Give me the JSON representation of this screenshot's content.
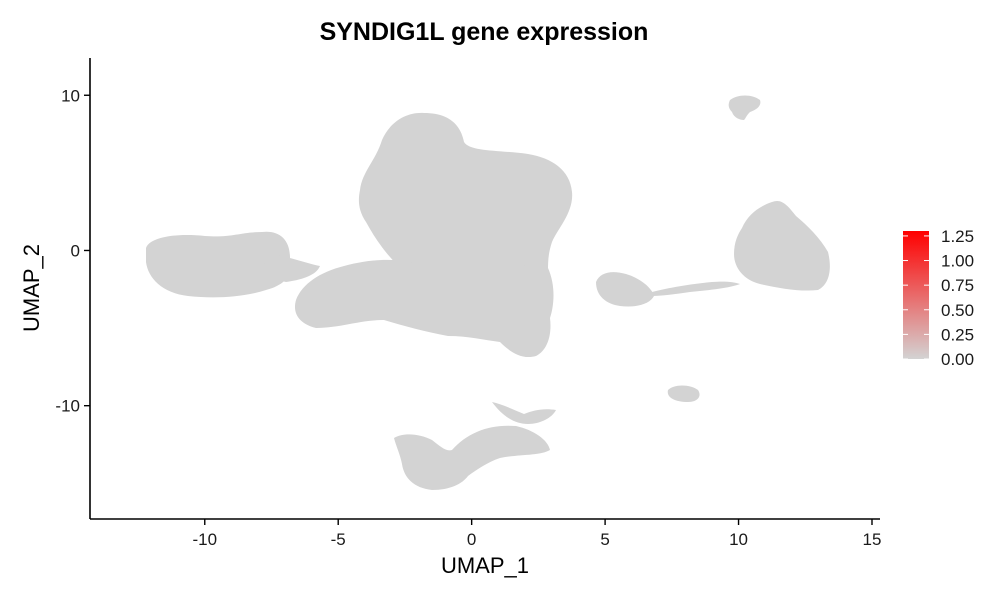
{
  "chart_data": {
    "type": "scatter",
    "title": "SYNDIG1L gene expression",
    "xlabel": "UMAP_1",
    "ylabel": "UMAP_2",
    "xlim": [
      -14.3,
      15.3
    ],
    "ylim": [
      -17.3,
      12.4
    ],
    "x_ticks": [
      -10,
      -5,
      0,
      5,
      10,
      15
    ],
    "y_ticks": [
      -10,
      0,
      10
    ],
    "x_tick_labels": [
      "-10",
      "-5",
      "0",
      "5",
      "10",
      "15"
    ],
    "y_tick_labels": [
      "-10",
      "0",
      "10"
    ],
    "point_color": "#D3D3D3",
    "grid": false,
    "legend": {
      "placement": "right",
      "type": "colorbar",
      "low_color": "#D3D3D3",
      "high_color": "#FF0000",
      "range": [
        0,
        1.3
      ],
      "ticks": [
        0.0,
        0.25,
        0.5,
        0.75,
        1.0,
        1.25
      ],
      "tick_labels": [
        "0.00",
        "0.25",
        "0.50",
        "0.75",
        "1.00",
        "1.25"
      ]
    },
    "clusters": [
      {
        "x": [
          -12.3,
          -6.6
        ],
        "y": [
          -3.0,
          1.3
        ]
      },
      {
        "x": [
          -5.8,
          3.8
        ],
        "y": [
          -5.0,
          8.0
        ]
      },
      {
        "x": [
          -2.8,
          1.5
        ],
        "y": [
          5.0,
          9.0
        ]
      },
      {
        "x": [
          -6.5,
          3.2
        ],
        "y": [
          -5.5,
          0.0
        ]
      },
      {
        "x": [
          0.0,
          3.2
        ],
        "y": [
          -7.0,
          -2.0
        ]
      },
      {
        "x": [
          4.8,
          7.0
        ],
        "y": [
          -3.8,
          -1.3
        ]
      },
      {
        "x": [
          6.9,
          10.2
        ],
        "y": [
          -3.0,
          -1.8
        ]
      },
      {
        "x": [
          10.0,
          13.4
        ],
        "y": [
          -2.6,
          3.3
        ]
      },
      {
        "x": [
          9.0,
          10.9
        ],
        "y": [
          8.2,
          10.0
        ]
      },
      {
        "x": [
          7.4,
          8.6
        ],
        "y": [
          -9.7,
          -8.6
        ]
      },
      {
        "x": [
          -3.0,
          3.0
        ],
        "y": [
          -15.3,
          -10.0
        ]
      }
    ]
  }
}
